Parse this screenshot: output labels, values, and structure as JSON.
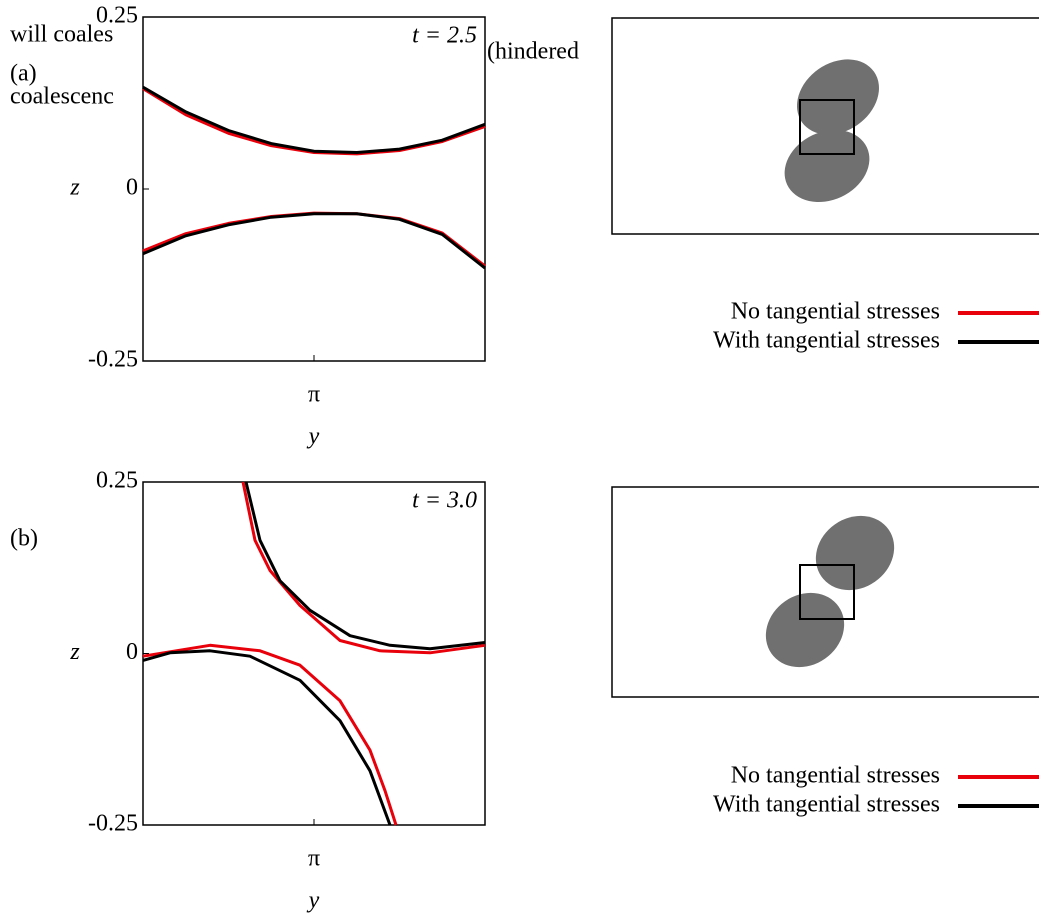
{
  "notes": [
    "will coales",
    "(hindered",
    "coalescenc"
  ],
  "chart_data": [
    {
      "type": "line",
      "label": "(a)",
      "annotation": "t = 2.5",
      "xlabel": "y",
      "ylabel": "z",
      "xlim": [
        0,
        6.28
      ],
      "ylim": [
        -0.25,
        0.25
      ],
      "yticks": [
        -0.25,
        0,
        0.25
      ],
      "xticks": [
        {
          "value": 3.14,
          "label": "π"
        }
      ],
      "series": [
        {
          "name": "No tangential stresses",
          "color": "#e8000b",
          "x": [
            0,
            0.785,
            1.57,
            2.355,
            3.14,
            3.925,
            4.71,
            5.495,
            6.28,
            null,
            0,
            0.785,
            1.57,
            2.355,
            3.14,
            3.925,
            4.71,
            5.495,
            6.28
          ],
          "values": [
            0.146,
            0.108,
            0.081,
            0.063,
            0.053,
            0.051,
            0.056,
            0.069,
            0.091,
            null,
            -0.09,
            -0.065,
            -0.05,
            -0.04,
            -0.035,
            -0.036,
            -0.043,
            -0.064,
            -0.112
          ]
        },
        {
          "name": "With tangential stresses",
          "color": "#000000",
          "x": [
            0,
            0.785,
            1.57,
            2.355,
            3.14,
            3.925,
            4.71,
            5.495,
            6.28,
            null,
            0,
            0.785,
            1.57,
            2.355,
            3.14,
            3.925,
            4.71,
            5.495,
            6.28
          ],
          "values": [
            0.148,
            0.112,
            0.085,
            0.066,
            0.055,
            0.053,
            0.058,
            0.071,
            0.094,
            null,
            -0.094,
            -0.068,
            -0.052,
            -0.041,
            -0.036,
            -0.036,
            -0.044,
            -0.066,
            -0.115
          ]
        }
      ]
    },
    {
      "type": "line",
      "label": "(b)",
      "annotation": "t = 3.0",
      "xlabel": "y",
      "ylabel": "z",
      "xlim": [
        0,
        6.28
      ],
      "ylim": [
        -0.25,
        0.25
      ],
      "yticks": [
        -0.25,
        0,
        0.25
      ],
      "xticks": [
        {
          "value": 3.14,
          "label": "π"
        }
      ],
      "series": [
        {
          "name": "No tangential stresses",
          "color": "#e8000b",
          "x": [
            1.836,
            2.057,
            2.332,
            2.883,
            3.618,
            4.352,
            5.27,
            6.28,
            null,
            0,
            1.23,
            2.148,
            2.883,
            3.618,
            4.168,
            4.444,
            4.646
          ],
          "values": [
            0.25,
            0.165,
            0.121,
            0.07,
            0.019,
            0.004,
            0.001,
            0.012,
            null,
            -0.004,
            0.012,
            0.004,
            -0.017,
            -0.069,
            -0.141,
            -0.2,
            -0.25
          ]
        },
        {
          "name": "With tangential stresses",
          "color": "#000000",
          "x": [
            1.891,
            2.148,
            2.516,
            3.067,
            3.801,
            4.536,
            5.27,
            6.28,
            null,
            0,
            0.496,
            1.23,
            1.965,
            2.883,
            3.618,
            4.168,
            4.536
          ],
          "values": [
            0.25,
            0.165,
            0.106,
            0.063,
            0.026,
            0.012,
            0.007,
            0.016,
            null,
            -0.01,
            0.001,
            0.004,
            -0.004,
            -0.039,
            -0.098,
            -0.171,
            -0.25
          ]
        }
      ]
    }
  ]
}
